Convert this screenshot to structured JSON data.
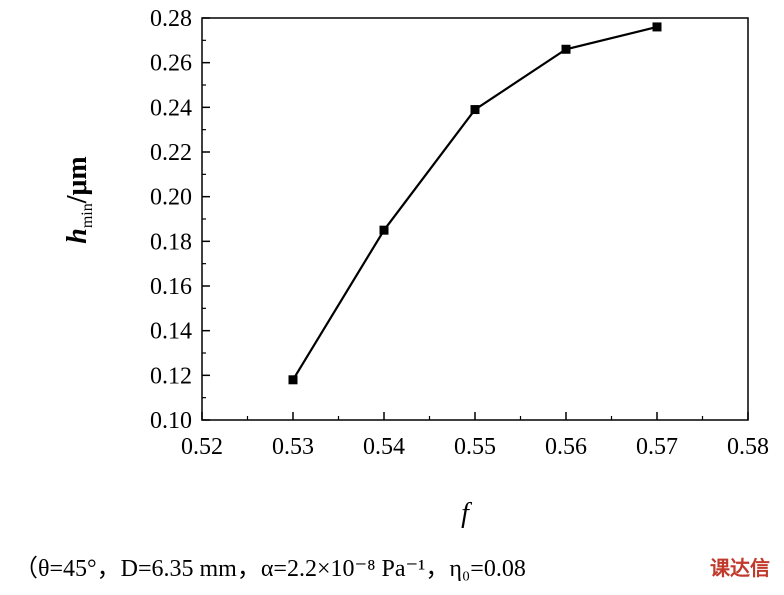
{
  "chart_data": {
    "type": "line",
    "x": [
      0.53,
      0.54,
      0.55,
      0.56,
      0.57
    ],
    "series": [
      {
        "values": [
          0.118,
          0.185,
          0.239,
          0.266,
          0.276
        ]
      }
    ],
    "xlabel": "f",
    "ylabel_main": "h",
    "ylabel_sub": "min",
    "ylabel_unit": "/μm",
    "xlim": [
      0.52,
      0.58
    ],
    "ylim": [
      0.1,
      0.28
    ],
    "xticks": [
      "0.52",
      "0.53",
      "0.54",
      "0.55",
      "0.56",
      "0.57",
      "0.58"
    ],
    "yticks": [
      "0.10",
      "0.12",
      "0.14",
      "0.16",
      "0.18",
      "0.20",
      "0.22",
      "0.24",
      "0.26",
      "0.28"
    ],
    "grid": false,
    "line_color": "#000000",
    "marker": "square"
  },
  "caption": "（θ=45°，D=6.35 mm，α=2.2×10⁻⁸ Pa⁻¹，η₀=0.08",
  "watermark": "课达信"
}
